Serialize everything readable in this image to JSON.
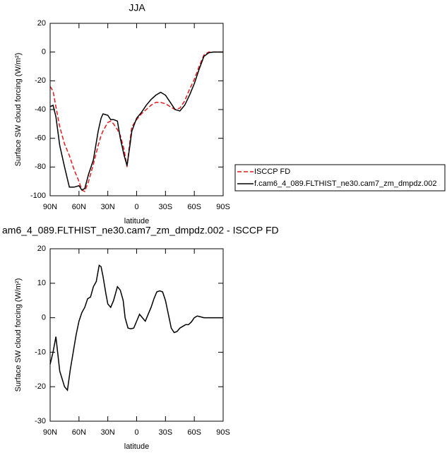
{
  "chart_data": [
    {
      "type": "line",
      "title": "JJA",
      "xlabel": "latitude",
      "ylabel": "Surface SW cloud forcing (W/m²)",
      "x": [
        90,
        87,
        84,
        80,
        75,
        70,
        65,
        60,
        57,
        54,
        50,
        45,
        40,
        37,
        35,
        30,
        27,
        24,
        20,
        17,
        13,
        10,
        7,
        5,
        0,
        -5,
        -10,
        -15,
        -20,
        -25,
        -30,
        -35,
        -40,
        -45,
        -50,
        -55,
        -60,
        -65,
        -70,
        -75,
        -80,
        -85,
        -90
      ],
      "series": [
        {
          "name": "ISCCP FD",
          "color": "#e41a1c",
          "line_style": "dashed",
          "values": [
            -24,
            -27,
            -38,
            -52,
            -64,
            -72,
            -82,
            -90,
            -96,
            -97,
            -90,
            -78,
            -65,
            -58,
            -55,
            -49,
            -48,
            -50,
            -54,
            -58,
            -68,
            -80,
            -62,
            -52,
            -47,
            -43,
            -40,
            -37,
            -35,
            -35,
            -36,
            -38,
            -40,
            -39,
            -34,
            -26,
            -19,
            -10,
            -2,
            0,
            0,
            0,
            0
          ]
        },
        {
          "name": "f.cam6_4_089.FLTHIST_ne30.cam7_zm_dmpdz.002",
          "color": "#000000",
          "line_style": "solid",
          "values": [
            -38,
            -37,
            -45,
            -65,
            -80,
            -94,
            -94,
            -93,
            -96,
            -95,
            -85,
            -75,
            -55,
            -46,
            -43,
            -44,
            -47,
            -47,
            -48,
            -60,
            -72,
            -79,
            -65,
            -55,
            -46,
            -42,
            -37,
            -33,
            -30,
            -28,
            -30,
            -35,
            -40,
            -41,
            -37,
            -30,
            -22,
            -12,
            -3,
            -0.5,
            0,
            0,
            0
          ]
        }
      ],
      "xlim": [
        90,
        -90
      ],
      "xticks": [
        {
          "value": 90,
          "label": "90N"
        },
        {
          "value": 60,
          "label": "60N"
        },
        {
          "value": 30,
          "label": "30N"
        },
        0,
        {
          "value": -30,
          "label": "30S"
        },
        {
          "value": -60,
          "label": "60S"
        },
        {
          "value": -90,
          "label": "90S"
        }
      ],
      "ylim": [
        -100,
        20
      ],
      "yticks": [
        -100,
        -80,
        -60,
        -40,
        -20,
        0,
        20
      ],
      "legend": "right"
    },
    {
      "type": "line",
      "title": "am6_4_089.FLTHIST_ne30.cam7_zm_dmpdz.002 - ISCCP FD",
      "xlabel": "latitude",
      "ylabel": "Surface SW cloud forcing (W/m²)",
      "x": [
        90,
        87,
        84,
        80,
        75,
        72,
        69,
        66,
        63,
        60,
        57,
        54,
        51,
        48,
        45,
        42,
        39,
        37,
        35,
        32,
        30,
        27,
        24,
        20,
        17,
        14,
        12,
        9,
        6,
        3,
        0,
        -3,
        -6,
        -9,
        -12,
        -15,
        -18,
        -21,
        -24,
        -27,
        -30,
        -33,
        -36,
        -39,
        -42,
        -45,
        -48,
        -51,
        -54,
        -57,
        -60,
        -63,
        -66,
        -70,
        -80,
        -90
      ],
      "series": [
        {
          "color": "#000000",
          "line_style": "solid",
          "values": [
            -13.5,
            -10,
            -5.5,
            -15.5,
            -20,
            -21,
            -15,
            -10,
            -5,
            -1,
            1.5,
            3,
            5.5,
            6,
            9,
            10.5,
            15.2,
            14.8,
            12,
            7,
            4,
            3,
            5,
            9,
            8,
            5,
            0,
            -3,
            -3.2,
            -3,
            -1,
            1,
            0,
            -1,
            1,
            3,
            5.5,
            7.5,
            7.8,
            7.5,
            5,
            1,
            -3,
            -4.3,
            -4,
            -3,
            -2.5,
            -2,
            -2,
            -1.2,
            0,
            0.5,
            0.3,
            0,
            0,
            0
          ]
        }
      ],
      "xlim": [
        90,
        -90
      ],
      "xticks": [
        {
          "value": 90,
          "label": "90N"
        },
        {
          "value": 60,
          "label": "60N"
        },
        {
          "value": 30,
          "label": "30N"
        },
        0,
        {
          "value": -30,
          "label": "30S"
        },
        {
          "value": -60,
          "label": "60S"
        },
        {
          "value": -90,
          "label": "90S"
        }
      ],
      "ylim": [
        -30,
        20
      ],
      "yticks": [
        -30,
        -20,
        -10,
        0,
        10,
        20
      ]
    }
  ]
}
